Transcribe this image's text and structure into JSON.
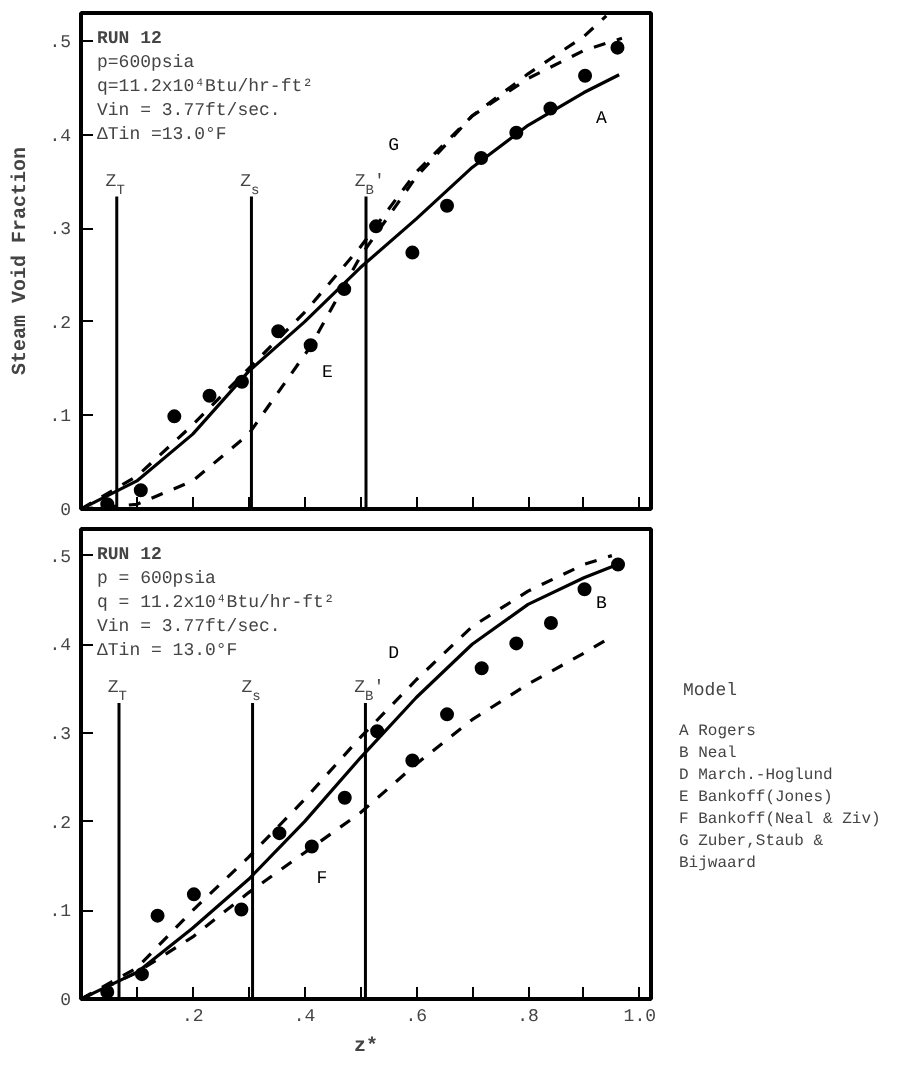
{
  "chart_data": [
    {
      "type": "line",
      "ylabel": "Steam Void Fraction",
      "xlim": [
        0,
        1.02
      ],
      "ylim": [
        0,
        0.53
      ],
      "xticks": [
        {
          "value": 0,
          "label": null
        },
        {
          "value": 0.1,
          "label": null
        },
        {
          "value": 0.2,
          "label": null
        },
        {
          "value": 0.3,
          "label": null
        },
        {
          "value": 0.4,
          "label": null
        },
        {
          "value": 0.5,
          "label": null
        },
        {
          "value": 0.6,
          "label": null
        },
        {
          "value": 0.7,
          "label": null
        },
        {
          "value": 0.8,
          "label": null
        },
        {
          "value": 0.9,
          "label": null
        },
        {
          "value": 1.0,
          "label": null
        }
      ],
      "yticks": [
        {
          "value": 0,
          "label": "0"
        },
        {
          "value": 0.1,
          "label": ".1"
        },
        {
          "value": 0.2,
          "label": ".2"
        },
        {
          "value": 0.3,
          "label": ".3"
        },
        {
          "value": 0.4,
          "label": ".4"
        },
        {
          "value": 0.5,
          "label": ".5"
        }
      ],
      "tick_labels": "y",
      "grid": false,
      "series": [
        {
          "type": "line",
          "name": "A",
          "line_style": "solid",
          "color": "#000000",
          "x": [
            0,
            0.1,
            0.2,
            0.3,
            0.4,
            0.5,
            0.6,
            0.7,
            0.8,
            0.9,
            0.963
          ],
          "values": [
            0,
            0.03,
            0.08,
            0.147,
            0.2,
            0.258,
            0.31,
            0.365,
            0.41,
            0.445,
            0.464
          ]
        },
        {
          "type": "line",
          "name": "G",
          "line_style": "dashed",
          "color": "#000000",
          "x": [
            0,
            0.1,
            0.2,
            0.3,
            0.4,
            0.5,
            0.6,
            0.7,
            0.8,
            0.9,
            0.94
          ],
          "values": [
            0,
            0.035,
            0.09,
            0.15,
            0.21,
            0.28,
            0.36,
            0.42,
            0.465,
            0.505,
            0.527
          ]
        },
        {
          "type": "line",
          "name": "E",
          "line_style": "dashed",
          "color": "#000000",
          "x": [
            0,
            0.1,
            0.2,
            0.3,
            0.41,
            0.5,
            0.6,
            0.7,
            0.8,
            0.9,
            0.968
          ],
          "values": [
            0,
            0.005,
            0.03,
            0.08,
            0.173,
            0.27,
            0.355,
            0.42,
            0.46,
            0.49,
            0.503
          ]
        },
        {
          "type": "scatter",
          "marker": "circle",
          "color": "#000000",
          "x": [
            0.047,
            0.107,
            0.167,
            0.23,
            0.288,
            0.353,
            0.411,
            0.471,
            0.528,
            0.593,
            0.655,
            0.716,
            0.779,
            0.84,
            0.902,
            0.96
          ],
          "values": [
            0.005,
            0.02,
            0.099,
            0.121,
            0.136,
            0.19,
            0.175,
            0.235,
            0.302,
            0.274,
            0.324,
            0.375,
            0.402,
            0.428,
            0.463,
            0.493
          ]
        }
      ],
      "ref_lines": [
        {
          "axis": "x",
          "value": 0.064,
          "label": "Z$_{T}$"
        },
        {
          "axis": "x",
          "value": 0.305,
          "label": "Z$_{s}$"
        },
        {
          "axis": "x",
          "value": 0.51,
          "label": "Z$_{B}$'"
        }
      ],
      "annotations": [
        "RUN 12",
        "p=600psia",
        "q=11.2x10⁴Btu/hr-ft²",
        "Vin = 3.77ft/sec.",
        "ΔTin =13.0°F"
      ]
    },
    {
      "type": "line",
      "xlabel": "z*",
      "xlim": [
        0,
        1.02
      ],
      "ylim": [
        0,
        0.53
      ],
      "xticks": [
        {
          "value": 0,
          "label": null
        },
        {
          "value": 0.1,
          "label": null
        },
        {
          "value": 0.2,
          "label": ".2"
        },
        {
          "value": 0.3,
          "label": null
        },
        {
          "value": 0.4,
          "label": ".4"
        },
        {
          "value": 0.5,
          "label": null
        },
        {
          "value": 0.6,
          "label": ".6"
        },
        {
          "value": 0.7,
          "label": null
        },
        {
          "value": 0.8,
          "label": ".8"
        },
        {
          "value": 0.9,
          "label": null
        },
        {
          "value": 1.0,
          "label": "1.0"
        }
      ],
      "yticks": [
        {
          "value": 0,
          "label": "0"
        },
        {
          "value": 0.1,
          "label": ".1"
        },
        {
          "value": 0.2,
          "label": ".2"
        },
        {
          "value": 0.3,
          "label": ".3"
        },
        {
          "value": 0.4,
          "label": ".4"
        },
        {
          "value": 0.5,
          "label": ".5"
        }
      ],
      "grid": false,
      "series": [
        {
          "type": "line",
          "name": "B",
          "line_style": "solid",
          "color": "#000000",
          "x": [
            0,
            0.1,
            0.2,
            0.3,
            0.4,
            0.5,
            0.6,
            0.7,
            0.8,
            0.9,
            0.96
          ],
          "values": [
            0,
            0.03,
            0.08,
            0.135,
            0.2,
            0.272,
            0.34,
            0.4,
            0.445,
            0.475,
            0.49
          ]
        },
        {
          "type": "line",
          "name": "D",
          "line_style": "dashed",
          "color": "#000000",
          "x": [
            0,
            0.1,
            0.2,
            0.3,
            0.4,
            0.5,
            0.6,
            0.7,
            0.8,
            0.9,
            0.95
          ],
          "values": [
            0,
            0.035,
            0.1,
            0.16,
            0.225,
            0.295,
            0.36,
            0.42,
            0.46,
            0.49,
            0.5
          ]
        },
        {
          "type": "line",
          "name": "F",
          "line_style": "dashed",
          "color": "#000000",
          "x": [
            0,
            0.1,
            0.2,
            0.3,
            0.4,
            0.5,
            0.6,
            0.7,
            0.8,
            0.9,
            0.94
          ],
          "values": [
            0,
            0.03,
            0.07,
            0.12,
            0.165,
            0.21,
            0.265,
            0.315,
            0.355,
            0.39,
            0.405
          ]
        },
        {
          "type": "scatter",
          "marker": "circle",
          "color": "#000000",
          "x": [
            0.047,
            0.109,
            0.137,
            0.202,
            0.287,
            0.355,
            0.413,
            0.472,
            0.53,
            0.593,
            0.655,
            0.717,
            0.779,
            0.841,
            0.901,
            0.961
          ],
          "values": [
            0.008,
            0.028,
            0.094,
            0.118,
            0.101,
            0.187,
            0.172,
            0.227,
            0.302,
            0.269,
            0.321,
            0.373,
            0.401,
            0.424,
            0.462,
            0.49
          ]
        }
      ],
      "ref_lines": [
        {
          "axis": "x",
          "value": 0.068,
          "label": "Z$_{T}$"
        },
        {
          "axis": "x",
          "value": 0.307,
          "label": "Z$_{s}$"
        },
        {
          "axis": "x",
          "value": 0.509,
          "label": "Z$_{B}$'"
        }
      ],
      "annotations": [
        "RUN 12",
        "p = 600psia",
        "q = 11.2x10⁴Btu/hr-ft²",
        "Vin = 3.77ft/sec.",
        "ΔTin = 13.0°F"
      ]
    },
    {
      "type": "other",
      "title": "Model",
      "annotations": [
        "A   Rogers",
        "B   Neal",
        "D   March.-Hoglund",
        "E   Bankoff(Jones)",
        "F   Bankoff(Neal & Ziv)",
        "G   Zuber,Staub &",
        "    Bijwaard"
      ]
    }
  ]
}
